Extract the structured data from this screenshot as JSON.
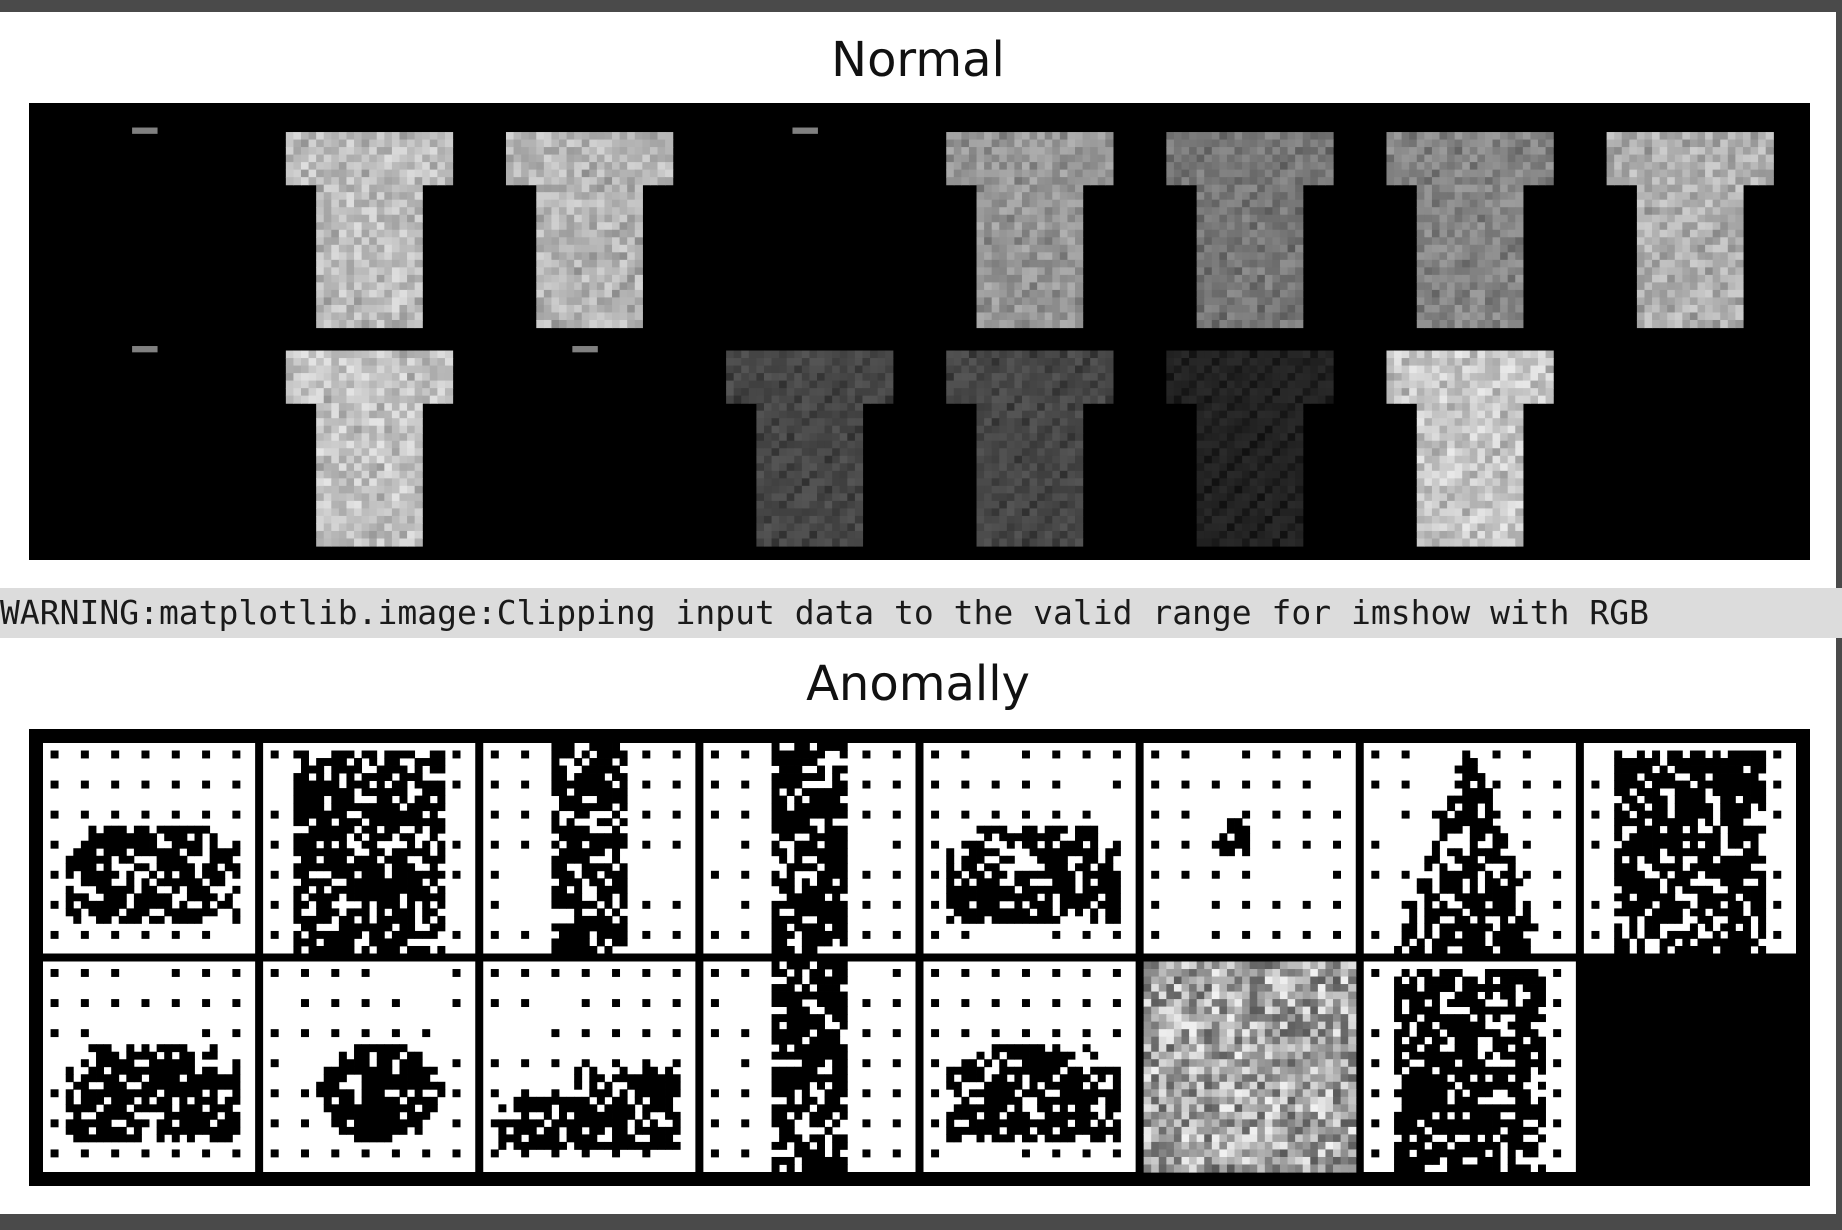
{
  "normal": {
    "title": "Normal",
    "rows": 2,
    "cols": 8,
    "tiles": [
      {
        "kind": "near-blank",
        "brightness": 0.08
      },
      {
        "kind": "tshirt",
        "brightness": 0.78
      },
      {
        "kind": "tshirt",
        "brightness": 0.74
      },
      {
        "kind": "near-blank",
        "brightness": 0.06
      },
      {
        "kind": "tshirt",
        "brightness": 0.62
      },
      {
        "kind": "tshirt",
        "brightness": 0.5
      },
      {
        "kind": "tshirt",
        "brightness": 0.55
      },
      {
        "kind": "tshirt",
        "brightness": 0.72
      },
      {
        "kind": "near-blank",
        "brightness": 0.08
      },
      {
        "kind": "tshirt",
        "brightness": 0.8
      },
      {
        "kind": "near-blank",
        "brightness": 0.08
      },
      {
        "kind": "tshirt",
        "brightness": 0.3
      },
      {
        "kind": "tshirt",
        "brightness": 0.3
      },
      {
        "kind": "tshirt",
        "brightness": 0.15
      },
      {
        "kind": "tshirt",
        "brightness": 0.82
      },
      {
        "kind": "empty",
        "brightness": 0
      }
    ]
  },
  "warning": {
    "text": "WARNING:matplotlib.image:Clipping input data to the valid range for imshow with RGB"
  },
  "anomaly": {
    "title": "Anomally",
    "rows": 2,
    "cols": 8,
    "tiles": [
      {
        "kind": "noise-bag"
      },
      {
        "kind": "noise-coat"
      },
      {
        "kind": "noise-trouser"
      },
      {
        "kind": "noise-trouser"
      },
      {
        "kind": "noise-bag"
      },
      {
        "kind": "noise-sparse"
      },
      {
        "kind": "noise-dress"
      },
      {
        "kind": "noise-coat"
      },
      {
        "kind": "noise-bag"
      },
      {
        "kind": "noise-blob"
      },
      {
        "kind": "noise-sneaker"
      },
      {
        "kind": "noise-trouser"
      },
      {
        "kind": "noise-bag"
      },
      {
        "kind": "gray-texture"
      },
      {
        "kind": "noise-coat"
      },
      {
        "kind": "empty"
      }
    ]
  }
}
